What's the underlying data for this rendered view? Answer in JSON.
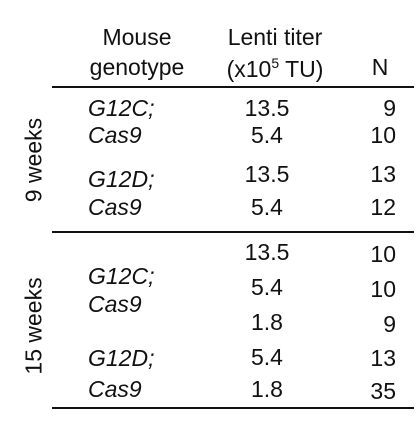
{
  "table": {
    "headers": {
      "genotype_line1": "Mouse",
      "genotype_line2": "genotype",
      "titer_line1": "Lenti titer",
      "titer_prefix": "(x10",
      "titer_sup": "5",
      "titer_suffix": " TU)",
      "n": "N"
    },
    "groups": [
      {
        "time": "9 weeks",
        "subgroups": [
          {
            "genotype_line1": "G12C;",
            "genotype_line2": "Cas9",
            "rows": [
              {
                "titer": "13.5",
                "n": "9"
              },
              {
                "titer": "5.4",
                "n": "10"
              }
            ]
          },
          {
            "genotype_line1": "G12D;",
            "genotype_line2": "Cas9",
            "rows": [
              {
                "titer": "13.5",
                "n": "13"
              },
              {
                "titer": "5.4",
                "n": "12"
              }
            ]
          }
        ]
      },
      {
        "time": "15 weeks",
        "subgroups": [
          {
            "genotype_line1": "G12C;",
            "genotype_line2": "Cas9",
            "rows": [
              {
                "titer": "13.5",
                "n": "10"
              },
              {
                "titer": "5.4",
                "n": "10"
              },
              {
                "titer": "1.8",
                "n": "9"
              }
            ]
          },
          {
            "genotype_line1": "G12D;",
            "genotype_line2": "Cas9",
            "rows": [
              {
                "titer": "5.4",
                "n": "13"
              },
              {
                "titer": "1.8",
                "n": "35"
              }
            ]
          }
        ]
      }
    ]
  }
}
